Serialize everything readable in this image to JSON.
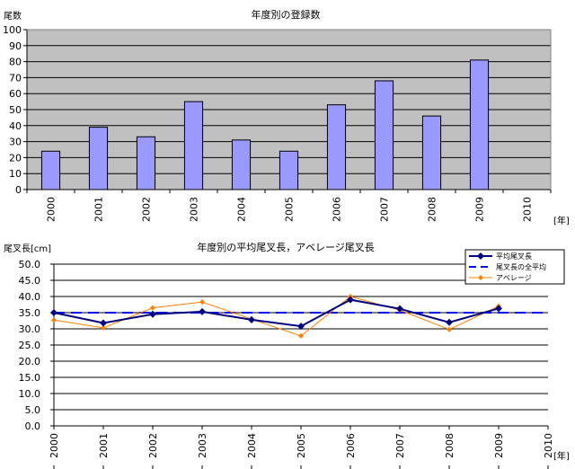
{
  "chart_data": [
    {
      "type": "bar",
      "title": "年度別の登録数",
      "ylabel": "尾数",
      "xunit": "[年]",
      "categories": [
        "2000",
        "2001",
        "2002",
        "2003",
        "2004",
        "2005",
        "2006",
        "2007",
        "2008",
        "2009",
        "2010"
      ],
      "values": [
        24,
        39,
        33,
        55,
        31,
        24,
        53,
        68,
        46,
        81,
        null
      ],
      "ylim": [
        0,
        100
      ],
      "yticks": [
        "0",
        "10",
        "20",
        "30",
        "40",
        "50",
        "60",
        "70",
        "80",
        "90",
        "100"
      ],
      "grid": true,
      "plot_background": "#c0c0c0",
      "bar_color": "#9999ff"
    },
    {
      "type": "line",
      "title": "年度別の平均尾叉長，アベレージ尾叉長",
      "ylabel": "尾叉長[cm]",
      "xunit": "[年]",
      "categories": [
        "2000",
        "2001",
        "2002",
        "2003",
        "2004",
        "2005",
        "2006",
        "2007",
        "2008",
        "2009",
        "2010"
      ],
      "ylim": [
        0,
        50
      ],
      "yticks": [
        "0.0",
        "5.0",
        "10.0",
        "15.0",
        "20.0",
        "25.0",
        "30.0",
        "35.0",
        "40.0",
        "45.0",
        "50.0"
      ],
      "grid": true,
      "legend_position": "top-right",
      "series": [
        {
          "name": "平均尾叉長",
          "values": [
            35.0,
            31.8,
            34.5,
            35.3,
            32.8,
            30.8,
            39.0,
            36.2,
            32.0,
            36.3,
            null
          ],
          "color": "#000080"
        },
        {
          "name": "尾叉長の全平均",
          "values": [
            35.0,
            35.0,
            35.0,
            35.0,
            35.0,
            35.0,
            35.0,
            35.0,
            35.0,
            35.0,
            35.0
          ],
          "color": "#0000ff"
        },
        {
          "name": "アベレージ",
          "values": [
            32.7,
            30.3,
            36.5,
            38.3,
            33.0,
            27.8,
            40.0,
            35.8,
            29.8,
            37.0,
            null
          ],
          "color": "#ff8000"
        }
      ]
    }
  ]
}
